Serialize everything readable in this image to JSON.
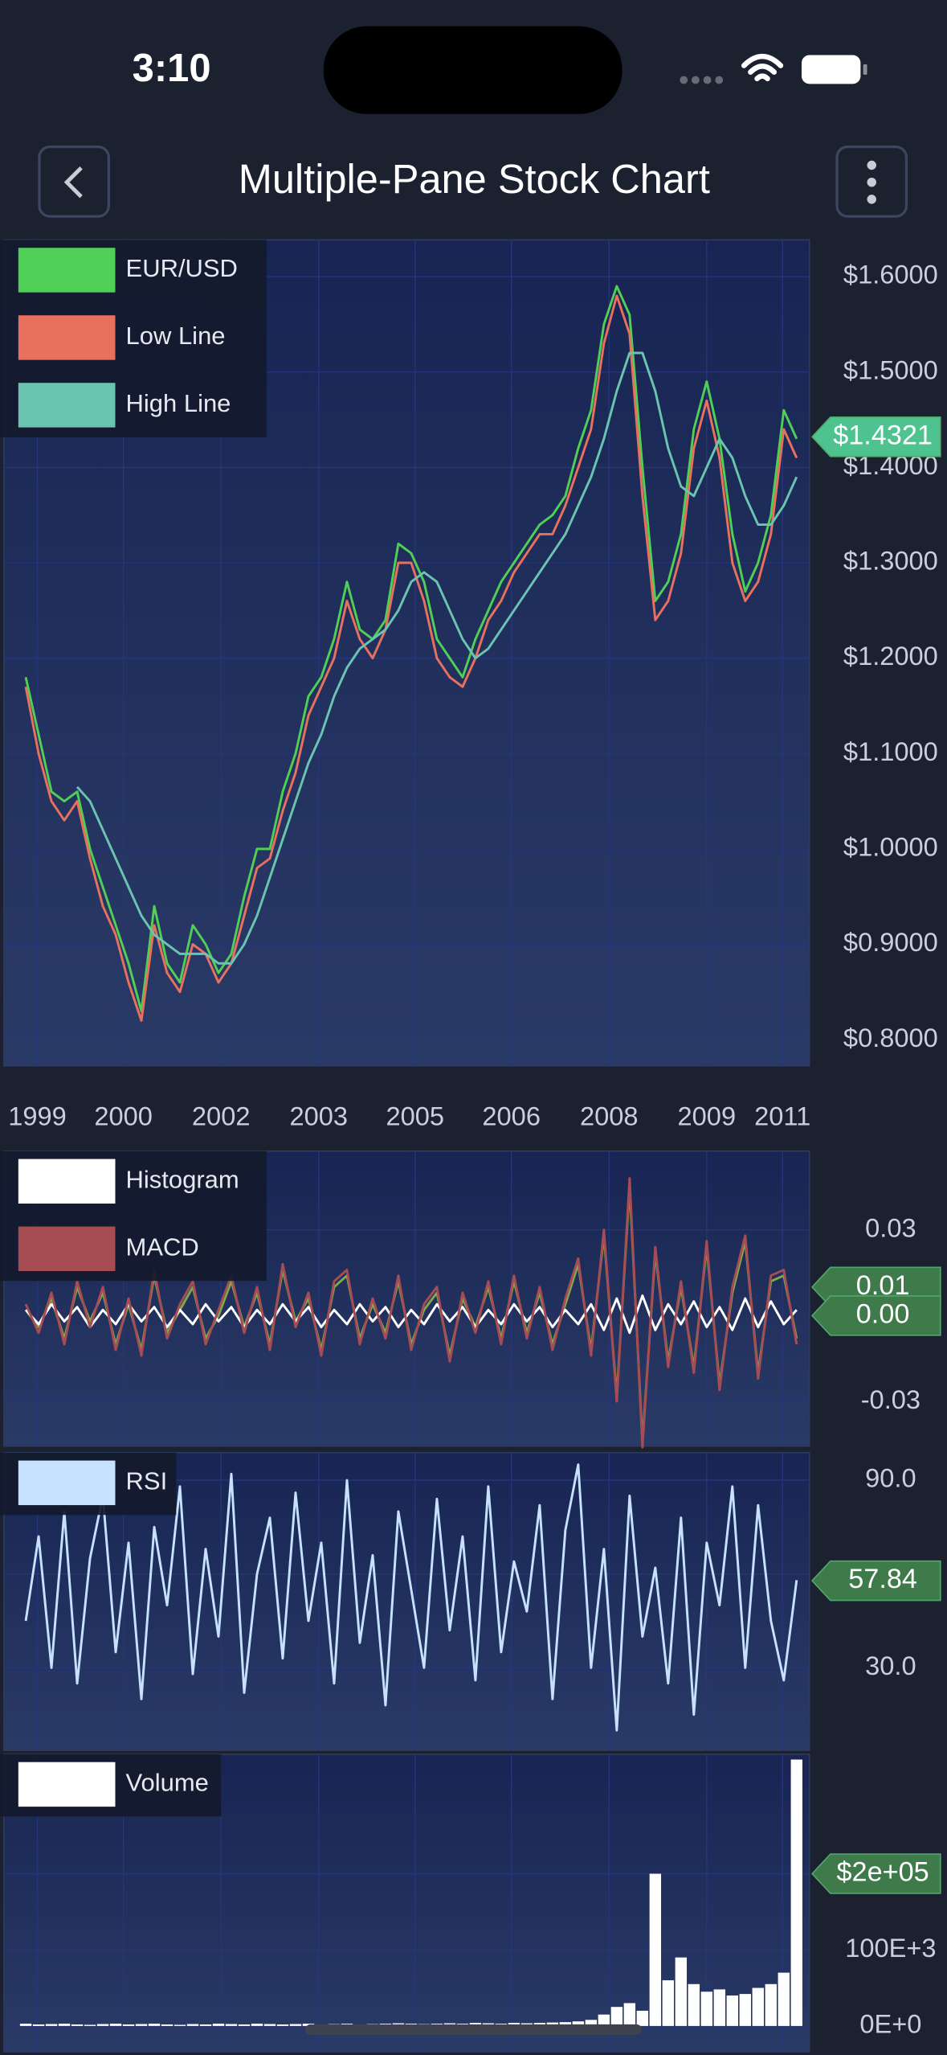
{
  "status_bar": {
    "time": "3:10"
  },
  "header": {
    "title": "Multiple-Pane Stock Chart"
  },
  "chart_data": [
    {
      "type": "line",
      "grid": true,
      "xlim": [
        -1.7,
        61
      ],
      "ylim": [
        0.7725,
        1.6385
      ],
      "xticks": [
        {
          "value": 0.9,
          "label": "1999"
        },
        {
          "value": 7.6,
          "label": "2000"
        },
        {
          "value": 15.2,
          "label": "2002"
        },
        {
          "value": 22.8,
          "label": "2003"
        },
        {
          "value": 30.3,
          "label": "2005"
        },
        {
          "value": 37.8,
          "label": "2006"
        },
        {
          "value": 45.4,
          "label": "2008"
        },
        {
          "value": 53.0,
          "label": "2009"
        },
        {
          "value": 58.9,
          "label": "2011"
        }
      ],
      "yticks": [
        {
          "value": 0.8,
          "label": "$0.8000"
        },
        {
          "value": 0.9,
          "label": "$0.9000"
        },
        {
          "value": 1.0,
          "label": "$1.0000"
        },
        {
          "value": 1.1,
          "label": "$1.1000"
        },
        {
          "value": 1.2,
          "label": "$1.2000"
        },
        {
          "value": 1.3,
          "label": "$1.3000"
        },
        {
          "value": 1.4,
          "label": "$1.4000"
        },
        {
          "value": 1.5,
          "label": "$1.5000"
        },
        {
          "value": 1.6,
          "label": "$1.6000"
        }
      ],
      "annotations": [
        {
          "value": 1.4321,
          "label": "$1.4321",
          "color": "#4fc38f"
        }
      ],
      "series": [
        {
          "name": "EUR/USD",
          "color": "#4fcf55",
          "values": [
            1.18,
            1.12,
            1.06,
            1.05,
            1.06,
            1.0,
            0.96,
            0.92,
            0.88,
            0.83,
            0.94,
            0.88,
            0.86,
            0.92,
            0.9,
            0.87,
            0.89,
            0.95,
            1.0,
            1.0,
            1.06,
            1.1,
            1.16,
            1.18,
            1.22,
            1.28,
            1.23,
            1.22,
            1.24,
            1.32,
            1.31,
            1.28,
            1.22,
            1.2,
            1.18,
            1.22,
            1.25,
            1.28,
            1.3,
            1.32,
            1.34,
            1.35,
            1.37,
            1.42,
            1.46,
            1.55,
            1.59,
            1.56,
            1.4,
            1.26,
            1.28,
            1.33,
            1.44,
            1.49,
            1.43,
            1.33,
            1.27,
            1.3,
            1.35,
            1.46,
            1.43
          ]
        },
        {
          "name": "Low Line",
          "color": "#e8705f",
          "values": [
            1.17,
            1.1,
            1.05,
            1.03,
            1.05,
            0.99,
            0.94,
            0.91,
            0.86,
            0.82,
            0.92,
            0.87,
            0.85,
            0.9,
            0.89,
            0.86,
            0.88,
            0.93,
            0.98,
            0.99,
            1.04,
            1.08,
            1.14,
            1.17,
            1.2,
            1.26,
            1.22,
            1.2,
            1.23,
            1.3,
            1.3,
            1.26,
            1.2,
            1.18,
            1.17,
            1.2,
            1.24,
            1.26,
            1.29,
            1.31,
            1.33,
            1.33,
            1.36,
            1.4,
            1.44,
            1.53,
            1.58,
            1.54,
            1.37,
            1.24,
            1.26,
            1.31,
            1.42,
            1.47,
            1.41,
            1.3,
            1.26,
            1.28,
            1.33,
            1.44,
            1.41
          ]
        },
        {
          "name": "High Line",
          "color": "#6ac4b0",
          "values": [
            null,
            null,
            null,
            null,
            1.065,
            1.05,
            1.02,
            0.99,
            0.96,
            0.93,
            0.91,
            0.9,
            0.89,
            0.89,
            0.89,
            0.88,
            0.88,
            0.9,
            0.93,
            0.97,
            1.01,
            1.05,
            1.09,
            1.12,
            1.16,
            1.19,
            1.21,
            1.22,
            1.23,
            1.25,
            1.28,
            1.29,
            1.28,
            1.25,
            1.22,
            1.2,
            1.21,
            1.23,
            1.25,
            1.27,
            1.29,
            1.31,
            1.33,
            1.36,
            1.39,
            1.43,
            1.48,
            1.52,
            1.52,
            1.48,
            1.42,
            1.38,
            1.37,
            1.4,
            1.43,
            1.41,
            1.37,
            1.34,
            1.34,
            1.36,
            1.39
          ]
        }
      ]
    },
    {
      "type": "line",
      "grid": true,
      "xlim": [
        -1.7,
        61
      ],
      "ylim": [
        -0.0456,
        0.0575
      ],
      "yticks": [
        -0.03,
        0.03
      ],
      "annotations": [
        {
          "value": 0.01,
          "label": "0.01",
          "color": "#3f7a4a"
        },
        {
          "value": 0,
          "label": "0.00",
          "color": "#3f7a4a"
        }
      ],
      "series": [
        {
          "color": "#7fa94e",
          "values": [
            0.002,
            -0.004,
            0.006,
            -0.008,
            0.01,
            -0.002,
            0.008,
            -0.01,
            0.004,
            -0.012,
            0.014,
            -0.006,
            0.002,
            0.01,
            -0.008,
            0.0,
            0.012,
            -0.004,
            0.008,
            -0.01,
            0.016,
            -0.002,
            0.006,
            -0.012,
            0.01,
            0.014,
            -0.008,
            0.004,
            -0.006,
            0.012,
            -0.01,
            0.002,
            0.008,
            -0.014,
            0.006,
            -0.004,
            0.01,
            -0.008,
            0.012,
            -0.006,
            0.008,
            -0.01,
            0.004,
            0.018,
            -0.012,
            0.028,
            -0.028,
            0.045,
            -0.044,
            0.022,
            -0.016,
            0.01,
            -0.018,
            0.024,
            -0.024,
            0.008,
            0.026,
            -0.02,
            0.012,
            0.014,
            -0.008
          ]
        },
        {
          "name": "Histogram",
          "color": "#ffffff",
          "values": [
            0.002,
            -0.003,
            0.004,
            -0.002,
            0.003,
            -0.004,
            0.002,
            -0.003,
            0.004,
            -0.002,
            0.003,
            -0.004,
            0.002,
            -0.003,
            0.004,
            -0.002,
            0.003,
            -0.004,
            0.002,
            -0.003,
            0.004,
            -0.002,
            0.003,
            -0.004,
            0.002,
            -0.003,
            0.004,
            -0.002,
            0.003,
            -0.004,
            0.002,
            -0.003,
            0.004,
            -0.002,
            0.003,
            -0.004,
            0.002,
            -0.003,
            0.004,
            -0.002,
            0.003,
            -0.004,
            0.002,
            -0.003,
            0.004,
            -0.005,
            0.006,
            -0.006,
            0.007,
            -0.005,
            0.004,
            -0.003,
            0.005,
            -0.004,
            0.003,
            -0.005,
            0.006,
            -0.004,
            0.005,
            -0.003,
            0.002
          ]
        },
        {
          "name": "MACD",
          "color": "#a64c53",
          "values": [
            0.004,
            -0.006,
            0.008,
            -0.01,
            0.012,
            -0.004,
            0.01,
            -0.012,
            0.006,
            -0.014,
            0.016,
            -0.008,
            0.004,
            0.012,
            -0.01,
            0.002,
            0.014,
            -0.006,
            0.01,
            -0.012,
            0.018,
            -0.004,
            0.008,
            -0.014,
            0.012,
            0.016,
            -0.01,
            0.006,
            -0.008,
            0.014,
            -0.012,
            0.004,
            0.01,
            -0.016,
            0.008,
            -0.006,
            0.012,
            -0.01,
            0.014,
            -0.008,
            0.01,
            -0.012,
            0.006,
            0.02,
            -0.014,
            0.03,
            -0.03,
            0.048,
            -0.046,
            0.024,
            -0.018,
            0.012,
            -0.02,
            0.026,
            -0.026,
            0.01,
            0.028,
            -0.022,
            0.014,
            0.016,
            -0.01
          ]
        }
      ]
    },
    {
      "type": "line",
      "grid": true,
      "xlim": [
        -1.7,
        61
      ],
      "ylim": [
        3.6,
        98.8
      ],
      "yticks": [
        {
          "value": 30,
          "label": "30.0"
        },
        {
          "value": 60,
          "label": "60.0"
        },
        {
          "value": 90,
          "label": "90.0"
        }
      ],
      "annotations": [
        {
          "value": 57.84,
          "label": "57.84",
          "color": "#3f7a4a"
        }
      ],
      "series": [
        {
          "name": "RSI",
          "color": "#c6e2ff",
          "values": [
            45,
            72,
            30,
            80,
            25,
            65,
            85,
            35,
            70,
            20,
            75,
            50,
            88,
            28,
            68,
            40,
            92,
            22,
            60,
            78,
            33,
            86,
            45,
            70,
            25,
            90,
            38,
            66,
            18,
            80,
            55,
            30,
            84,
            42,
            72,
            26,
            88,
            35,
            64,
            48,
            82,
            20,
            74,
            95,
            30,
            68,
            10,
            85,
            40,
            62,
            25,
            78,
            15,
            70,
            50,
            88,
            30,
            82,
            45,
            26,
            58
          ]
        }
      ]
    },
    {
      "type": "bar",
      "grid": true,
      "xlim": [
        -1.7,
        61
      ],
      "ylim": [
        -34000,
        357000
      ],
      "yticks": [
        {
          "value": 0,
          "label": "0E+0"
        },
        {
          "value": 100000,
          "label": "100E+3"
        },
        {
          "value": 200000,
          "label": "200E+3"
        }
      ],
      "annotations": [
        {
          "value": 200000,
          "label": "$2e+05",
          "color": "#3f7a4a"
        }
      ],
      "series": [
        {
          "name": "Volume",
          "color": "#ffffff",
          "values": [
            3000,
            2000,
            2500,
            3000,
            2000,
            1500,
            2500,
            3000,
            2000,
            2500,
            3000,
            2000,
            1500,
            2500,
            2000,
            3000,
            2500,
            2000,
            3000,
            2500,
            2000,
            2500,
            3000,
            2000,
            2500,
            3000,
            2000,
            2500,
            3000,
            3500,
            3000,
            2500,
            3000,
            3500,
            3000,
            4000,
            3500,
            3000,
            4000,
            3500,
            4000,
            4500,
            5000,
            6000,
            8000,
            15000,
            25000,
            30000,
            20000,
            200000,
            60000,
            90000,
            55000,
            45000,
            48000,
            40000,
            42000,
            50000,
            55000,
            70000,
            350000
          ]
        }
      ]
    }
  ]
}
